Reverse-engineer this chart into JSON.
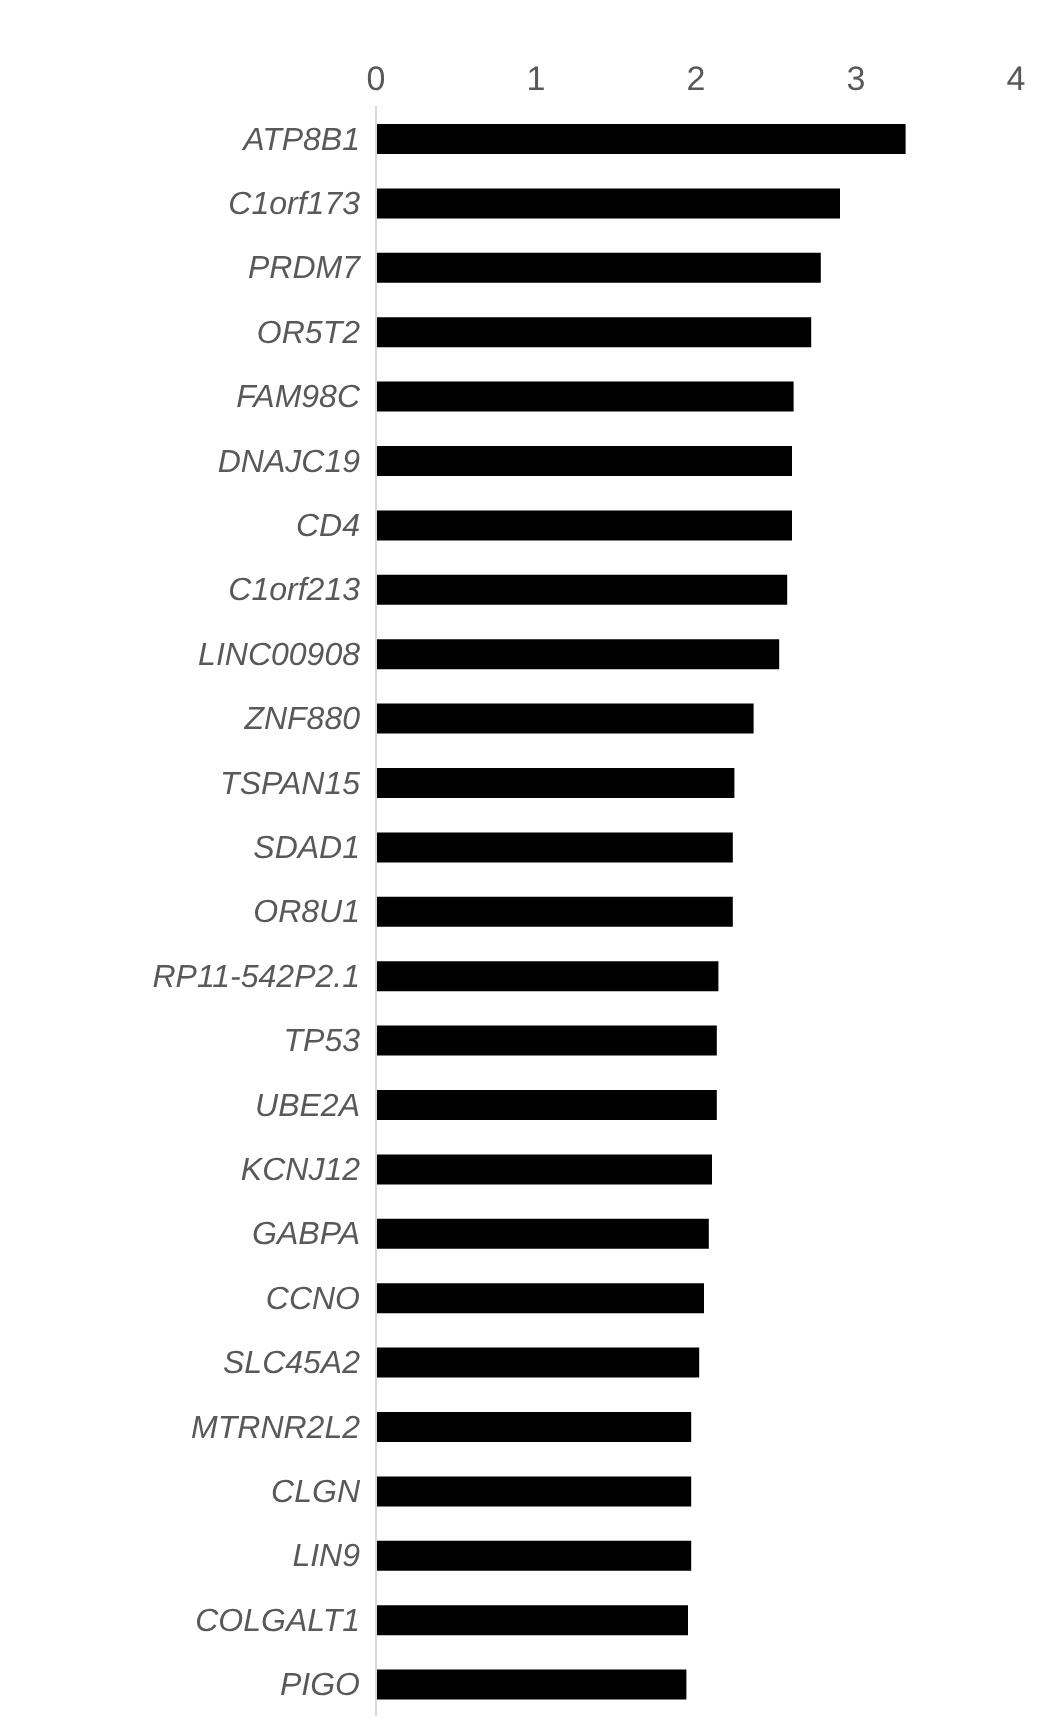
{
  "chart_data": {
    "type": "bar",
    "orientation": "horizontal",
    "categories": [
      "ATP8B1",
      "C1orf173",
      "PRDM7",
      "OR5T2",
      "FAM98C",
      "DNAJC19",
      "CD4",
      "C1orf213",
      "LINC00908",
      "ZNF880",
      "TSPAN15",
      "SDAD1",
      "OR8U1",
      "RP11-542P2.1",
      "TP53",
      "UBE2A",
      "KCNJ12",
      "GABPA",
      "CCNO",
      "SLC45A2",
      "MTRNR2L2",
      "CLGN",
      "LIN9",
      "COLGALT1",
      "PIGO"
    ],
    "values": [
      3.31,
      2.9,
      2.78,
      2.72,
      2.61,
      2.6,
      2.6,
      2.57,
      2.52,
      2.36,
      2.24,
      2.23,
      2.23,
      2.14,
      2.13,
      2.13,
      2.1,
      2.08,
      2.05,
      2.02,
      1.97,
      1.97,
      1.97,
      1.95,
      1.94
    ],
    "color": "#000000",
    "xlim": [
      0,
      4
    ],
    "xticks": [
      0,
      1,
      2,
      3,
      4
    ],
    "grid": false,
    "legend": false
  }
}
